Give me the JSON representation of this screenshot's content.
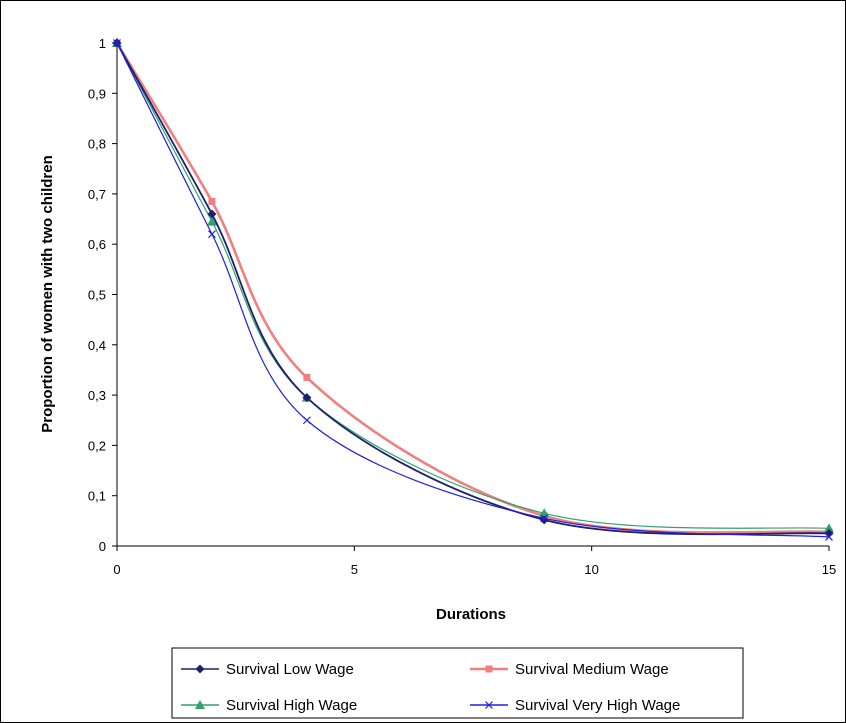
{
  "chart_data": {
    "type": "line",
    "title": "",
    "xlabel": "Durations",
    "ylabel": "Proportion of women with two children",
    "xlim": [
      0,
      15
    ],
    "ylim": [
      0,
      1
    ],
    "x_ticks": [
      0,
      5,
      10,
      15
    ],
    "x_tick_labels": [
      "0",
      "5",
      "10",
      "15"
    ],
    "y_ticks": [
      0,
      0.1,
      0.2,
      0.3,
      0.4,
      0.5,
      0.6,
      0.7,
      0.8,
      0.9,
      1
    ],
    "y_tick_labels": [
      "0",
      "0,1",
      "0,2",
      "0,3",
      "0,4",
      "0,5",
      "0,6",
      "0,7",
      "0,8",
      "0,9",
      "1"
    ],
    "grid": false,
    "legend_position": "bottom",
    "series": [
      {
        "name": "Survival Low Wage",
        "color": "#1f1f6e",
        "marker": "diamond",
        "x": [
          0,
          2,
          4,
          9,
          15
        ],
        "y": [
          1,
          0.66,
          0.295,
          0.052,
          0.025
        ]
      },
      {
        "name": "Survival Medium Wage",
        "color": "#f08080",
        "marker": "square",
        "x": [
          0,
          2,
          4,
          9,
          15
        ],
        "y": [
          1,
          0.685,
          0.335,
          0.06,
          0.028
        ]
      },
      {
        "name": "Survival High Wage",
        "color": "#2ea36b",
        "marker": "triangle",
        "x": [
          0,
          2,
          4,
          9,
          15
        ],
        "y": [
          1,
          0.645,
          0.295,
          0.065,
          0.035
        ]
      },
      {
        "name": "Survival Very High Wage",
        "color": "#2020e0",
        "marker": "x",
        "x": [
          0,
          2,
          4,
          9,
          15
        ],
        "y": [
          1,
          0.62,
          0.25,
          0.055,
          0.018
        ]
      }
    ]
  }
}
